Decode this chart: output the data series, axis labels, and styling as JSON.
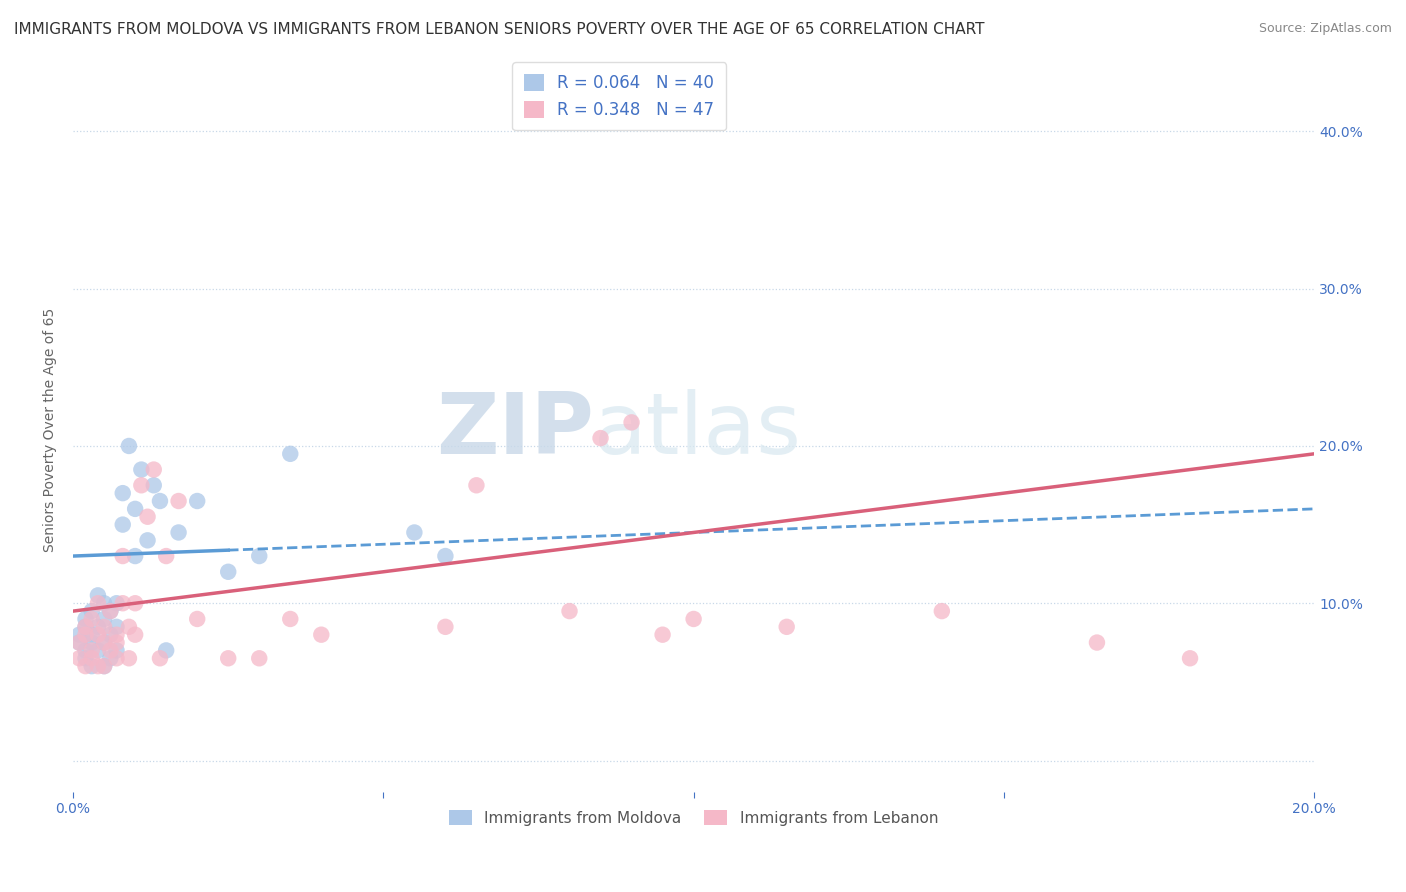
{
  "title": "IMMIGRANTS FROM MOLDOVA VS IMMIGRANTS FROM LEBANON SENIORS POVERTY OVER THE AGE OF 65 CORRELATION CHART",
  "source": "Source: ZipAtlas.com",
  "ylabel": "Seniors Poverty Over the Age of 65",
  "xlim": [
    0.0,
    0.2
  ],
  "ylim": [
    -0.02,
    0.44
  ],
  "yticks": [
    0.0,
    0.1,
    0.2,
    0.3,
    0.4
  ],
  "xticks": [
    0.0,
    0.05,
    0.1,
    0.15,
    0.2
  ],
  "xtick_labels": [
    "0.0%",
    "",
    "",
    "",
    "20.0%"
  ],
  "ytick_labels_right": [
    "",
    "10.0%",
    "20.0%",
    "30.0%",
    "40.0%"
  ],
  "legend_label1": "Immigrants from Moldova",
  "legend_label2": "Immigrants from Lebanon",
  "R1": 0.064,
  "N1": 40,
  "R2": 0.348,
  "N2": 47,
  "color_moldova": "#adc8e8",
  "color_lebanon": "#f5b8c8",
  "line_color_moldova": "#5b9bd5",
  "line_color_lebanon": "#d9607a",
  "moldova_x": [
    0.001,
    0.001,
    0.002,
    0.002,
    0.002,
    0.002,
    0.003,
    0.003,
    0.003,
    0.003,
    0.004,
    0.004,
    0.004,
    0.005,
    0.005,
    0.005,
    0.005,
    0.006,
    0.006,
    0.006,
    0.007,
    0.007,
    0.007,
    0.008,
    0.008,
    0.009,
    0.01,
    0.01,
    0.011,
    0.012,
    0.013,
    0.014,
    0.015,
    0.017,
    0.02,
    0.025,
    0.03,
    0.035,
    0.055,
    0.06
  ],
  "moldova_y": [
    0.08,
    0.075,
    0.085,
    0.07,
    0.09,
    0.065,
    0.095,
    0.075,
    0.08,
    0.06,
    0.105,
    0.07,
    0.085,
    0.09,
    0.06,
    0.075,
    0.1,
    0.08,
    0.065,
    0.095,
    0.085,
    0.07,
    0.1,
    0.17,
    0.15,
    0.2,
    0.16,
    0.13,
    0.185,
    0.14,
    0.175,
    0.165,
    0.07,
    0.145,
    0.165,
    0.12,
    0.13,
    0.195,
    0.145,
    0.13
  ],
  "lebanon_x": [
    0.001,
    0.001,
    0.002,
    0.002,
    0.002,
    0.003,
    0.003,
    0.003,
    0.004,
    0.004,
    0.004,
    0.005,
    0.005,
    0.005,
    0.006,
    0.006,
    0.007,
    0.007,
    0.007,
    0.008,
    0.008,
    0.009,
    0.009,
    0.01,
    0.01,
    0.011,
    0.012,
    0.013,
    0.014,
    0.015,
    0.017,
    0.02,
    0.025,
    0.03,
    0.035,
    0.04,
    0.06,
    0.065,
    0.08,
    0.085,
    0.09,
    0.095,
    0.1,
    0.115,
    0.14,
    0.165,
    0.18
  ],
  "lebanon_y": [
    0.075,
    0.065,
    0.08,
    0.06,
    0.085,
    0.09,
    0.07,
    0.065,
    0.08,
    0.06,
    0.1,
    0.075,
    0.085,
    0.06,
    0.07,
    0.095,
    0.075,
    0.065,
    0.08,
    0.13,
    0.1,
    0.085,
    0.065,
    0.1,
    0.08,
    0.175,
    0.155,
    0.185,
    0.065,
    0.13,
    0.165,
    0.09,
    0.065,
    0.065,
    0.09,
    0.08,
    0.085,
    0.175,
    0.095,
    0.205,
    0.215,
    0.08,
    0.09,
    0.085,
    0.095,
    0.075,
    0.065
  ],
  "watermark_zip": "ZIP",
  "watermark_atlas": "atlas",
  "background_color": "#ffffff",
  "grid_color": "#c8d8e8",
  "title_fontsize": 11,
  "axis_label_fontsize": 10,
  "tick_fontsize": 10,
  "tick_color": "#4472c4",
  "mol_trend_start_y": 0.13,
  "mol_trend_end_y": 0.16,
  "leb_trend_start_y": 0.095,
  "leb_trend_end_y": 0.195
}
